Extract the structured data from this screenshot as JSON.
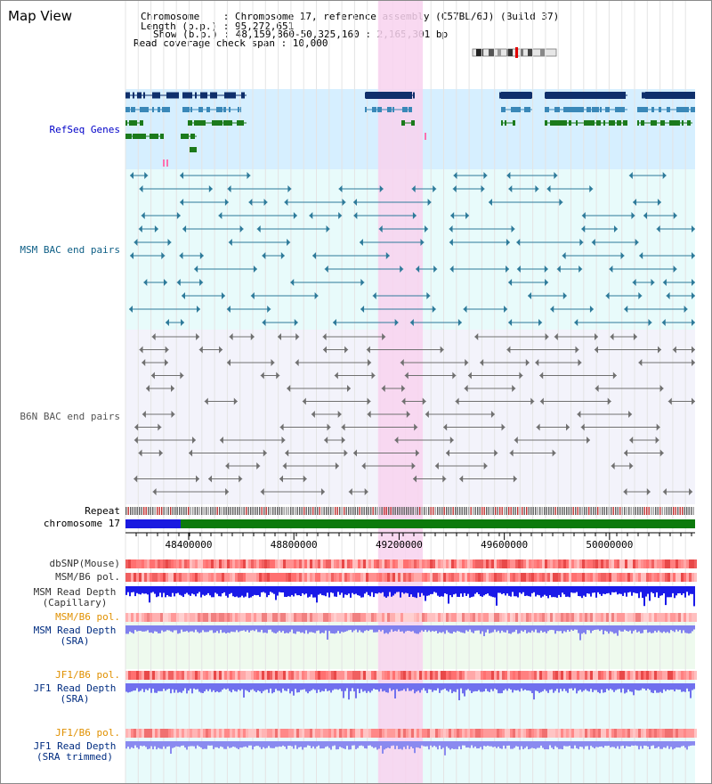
{
  "title": "Map View",
  "info": {
    "chromosome": "Chromosome    : Chromosome 17, reference assembly (C57BL/6J) (Build 37)",
    "length": "Length (b.p.) : 95,272,651",
    "show": "Show (b.p.) : 48,159,860-50,325,160 : 2,165,301 bp",
    "read_coverage": "Read coverage check span : 10,000"
  },
  "tracks": {
    "refseq": "RefSeq Genes",
    "msm_bac": "MSM BAC end pairs",
    "b6n_bac": "B6N BAC end pairs",
    "repeat": "Repeat",
    "chrom": "chromosome 17",
    "dbsnp": "dbSNP(Mouse)",
    "msm_b6_pol": "MSM/B6 pol.",
    "msm_rd_cap_1": "MSM Read Depth",
    "msm_rd_cap_2": "(Capillary)",
    "msm_b6_pol2": "MSM/B6 pol.",
    "msm_rd_sra_1": "MSM Read Depth",
    "msm_rd_sra_2": "(SRA)",
    "jf1_b6_pol": "JF1/B6 pol.",
    "jf1_rd_sra_1": "JF1 Read Depth",
    "jf1_rd_sra_2": "(SRA)",
    "jf1_b6_pol2": "JF1/B6 pol.",
    "jf1_rd_trim_1": "JF1 Read Depth",
    "jf1_rd_trim_2": "(SRA trimmed)"
  },
  "axis": {
    "ticks": [
      "48400000",
      "48800000",
      "49200000",
      "49600000",
      "50000000"
    ],
    "tick_values": [
      48400000,
      48800000,
      49200000,
      49600000,
      50000000
    ],
    "range": [
      48159860,
      50325160
    ]
  },
  "highlight": {
    "start": 49120000,
    "end": 49290000
  },
  "colors": {
    "highlight": "#f8d2ee",
    "refseq_bg": "#d6efff",
    "msm_bg": "#e8fbfb",
    "b6n_bg": "#f3f3fb",
    "gene_dark": "#0f2f6b",
    "gene_mid": "#3a88b8",
    "gene_green": "#1b7a1b",
    "msm_pair": "#2d7a9a",
    "b6n_pair": "#707070",
    "label_blue": "#0000c8",
    "label_orange": "#e09000",
    "label_dark_blue": "#002c80",
    "chrom_blue": "#1a1ae0",
    "chrom_green": "#0c7a0c"
  }
}
